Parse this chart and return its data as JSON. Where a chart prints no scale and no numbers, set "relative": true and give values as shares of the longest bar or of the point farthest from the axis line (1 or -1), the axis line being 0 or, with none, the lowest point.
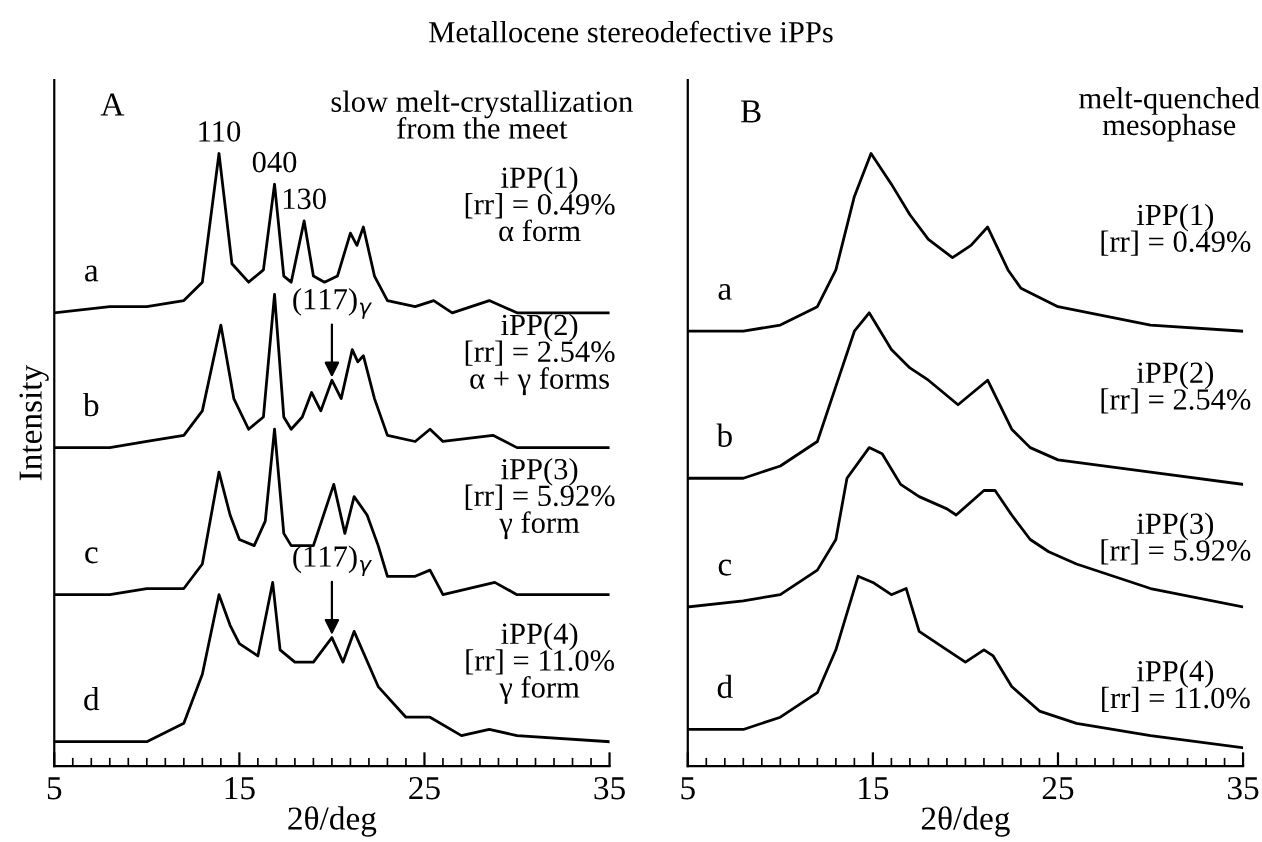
{
  "chart_data": [
    {
      "type": "line",
      "title": "Metallocene stereodefective iPPs",
      "xlabel": "2θ/deg",
      "ylabel": "Intensity",
      "relative": true,
      "xlim": [
        5,
        35
      ],
      "xticks": [
        5,
        15,
        25,
        35
      ],
      "tick_labels": "x",
      "grid": false,
      "legend": false,
      "marker": "none",
      "line_style": "solid",
      "annotations": [
        "A",
        "slow melt-crystallization\nfrom the meet",
        "iPP(1)\n[rr] = 0.49%\nα form",
        "iPP(2)\n[rr] = 2.54%\nα + γ forms",
        "iPP(3)\n[rr] = 5.92%\nγ form",
        "iPP(4)\n[rr] = 11.0%\nγ form",
        {
          "text": "110",
          "x": 13.9,
          "y": 1.0
        },
        {
          "text": "040",
          "x": 16.9,
          "y": 0.95
        },
        {
          "text": "130",
          "x": 18.5,
          "y": 0.89
        },
        {
          "text": "(117)$_{γ}$",
          "x": 20,
          "y": 0.63
        },
        {
          "text": "(117)$_{γ}$",
          "x": 20,
          "y": 0.21
        }
      ],
      "series": [
        {
          "name": "a",
          "color": "#000000",
          "x": [
            5,
            8,
            10,
            12,
            13,
            13.9,
            14.6,
            15.5,
            16.3,
            16.9,
            17.4,
            17.8,
            18.5,
            19.0,
            19.6,
            20.3,
            21.0,
            21.35,
            21.7,
            22.3,
            23,
            24.5,
            25.5,
            26.5,
            28.5,
            30,
            35
          ],
          "values": [
            0.74,
            0.75,
            0.75,
            0.76,
            0.79,
            1.0,
            0.82,
            0.79,
            0.81,
            0.95,
            0.8,
            0.79,
            0.89,
            0.8,
            0.79,
            0.8,
            0.87,
            0.85,
            0.88,
            0.8,
            0.76,
            0.75,
            0.76,
            0.74,
            0.76,
            0.74,
            0.74
          ]
        },
        {
          "name": "b",
          "color": "#000000",
          "x": [
            5,
            8,
            10,
            12,
            13,
            14.0,
            14.7,
            15.5,
            16.3,
            16.9,
            17.4,
            17.8,
            18.4,
            18.9,
            19.4,
            20.0,
            20.5,
            21.1,
            21.4,
            21.7,
            22.3,
            23,
            24.5,
            25.3,
            26,
            28.7,
            30,
            35
          ],
          "values": [
            0.52,
            0.52,
            0.53,
            0.54,
            0.58,
            0.72,
            0.6,
            0.55,
            0.57,
            0.77,
            0.57,
            0.55,
            0.57,
            0.61,
            0.58,
            0.63,
            0.6,
            0.68,
            0.66,
            0.67,
            0.6,
            0.54,
            0.53,
            0.55,
            0.53,
            0.54,
            0.52,
            0.52
          ]
        },
        {
          "name": "c",
          "color": "#000000",
          "x": [
            5,
            8,
            10,
            12,
            13,
            13.9,
            14.5,
            15,
            15.8,
            16.4,
            16.9,
            17.4,
            17.8,
            19.0,
            20.1,
            20.7,
            21.2,
            21.9,
            22.5,
            23,
            24.5,
            25.3,
            26,
            28.8,
            30,
            35
          ],
          "values": [
            0.28,
            0.28,
            0.29,
            0.29,
            0.33,
            0.48,
            0.41,
            0.37,
            0.36,
            0.4,
            0.55,
            0.38,
            0.36,
            0.36,
            0.46,
            0.38,
            0.44,
            0.41,
            0.36,
            0.31,
            0.31,
            0.32,
            0.28,
            0.3,
            0.28,
            0.28
          ]
        },
        {
          "name": "d",
          "color": "#000000",
          "x": [
            5,
            7.5,
            10,
            12,
            13,
            13.9,
            14.5,
            15,
            16,
            16.8,
            17.2,
            18,
            19,
            20,
            20.6,
            21.2,
            22.5,
            24,
            25.3,
            27,
            28.5,
            30,
            35
          ],
          "values": [
            0.04,
            0.04,
            0.04,
            0.07,
            0.15,
            0.28,
            0.23,
            0.2,
            0.18,
            0.3,
            0.19,
            0.17,
            0.17,
            0.21,
            0.17,
            0.22,
            0.13,
            0.08,
            0.08,
            0.05,
            0.06,
            0.05,
            0.04
          ]
        }
      ]
    },
    {
      "type": "line",
      "xlabel": "2θ/deg",
      "relative": true,
      "xlim": [
        5,
        35
      ],
      "xticks": [
        5,
        15,
        25,
        35
      ],
      "tick_labels": "x",
      "grid": false,
      "legend": false,
      "marker": "none",
      "line_style": "solid",
      "annotations": [
        "B",
        "melt-quenched\nmesophase",
        "iPP(1)\n[rr] = 0.49%",
        "iPP(2)\n[rr] = 2.54%",
        "iPP(3)\n[rr] = 5.92%",
        "iPP(4)\n[rr] = 11.0%"
      ],
      "series": [
        {
          "name": "a",
          "color": "#000000",
          "x": [
            5,
            8,
            10,
            12,
            13,
            14,
            14.9,
            16,
            17,
            18,
            19.3,
            20.3,
            21.2,
            22.3,
            23,
            25,
            30,
            35
          ],
          "values": [
            0.71,
            0.71,
            0.72,
            0.75,
            0.81,
            0.93,
            1.0,
            0.95,
            0.9,
            0.86,
            0.83,
            0.85,
            0.88,
            0.81,
            0.78,
            0.75,
            0.72,
            0.71
          ]
        },
        {
          "name": "b",
          "color": "#000000",
          "x": [
            5,
            8,
            10,
            12,
            13,
            14,
            14.8,
            16,
            17,
            18,
            19.6,
            20.4,
            21.2,
            22.5,
            23.5,
            25,
            30,
            35
          ],
          "values": [
            0.47,
            0.47,
            0.49,
            0.53,
            0.62,
            0.71,
            0.74,
            0.68,
            0.65,
            0.63,
            0.59,
            0.61,
            0.63,
            0.55,
            0.52,
            0.5,
            0.48,
            0.46
          ]
        },
        {
          "name": "c",
          "color": "#000000",
          "x": [
            5,
            8,
            10,
            12,
            13,
            13.6,
            14.8,
            15.5,
            16.5,
            17.5,
            19,
            19.5,
            21,
            21.6,
            22.5,
            23.5,
            24.5,
            26,
            28,
            30,
            35
          ],
          "values": [
            0.26,
            0.27,
            0.28,
            0.32,
            0.37,
            0.47,
            0.52,
            0.51,
            0.46,
            0.44,
            0.42,
            0.41,
            0.45,
            0.45,
            0.41,
            0.37,
            0.35,
            0.33,
            0.31,
            0.29,
            0.26
          ]
        },
        {
          "name": "d",
          "color": "#000000",
          "x": [
            5,
            8,
            10,
            12,
            13,
            14.2,
            15,
            16,
            16.8,
            17.5,
            19,
            20,
            21,
            21.5,
            22.5,
            24,
            26,
            30,
            35
          ],
          "values": [
            0.06,
            0.06,
            0.08,
            0.12,
            0.19,
            0.31,
            0.3,
            0.28,
            0.29,
            0.22,
            0.19,
            0.17,
            0.19,
            0.18,
            0.13,
            0.09,
            0.07,
            0.05,
            0.03
          ]
        }
      ]
    }
  ]
}
